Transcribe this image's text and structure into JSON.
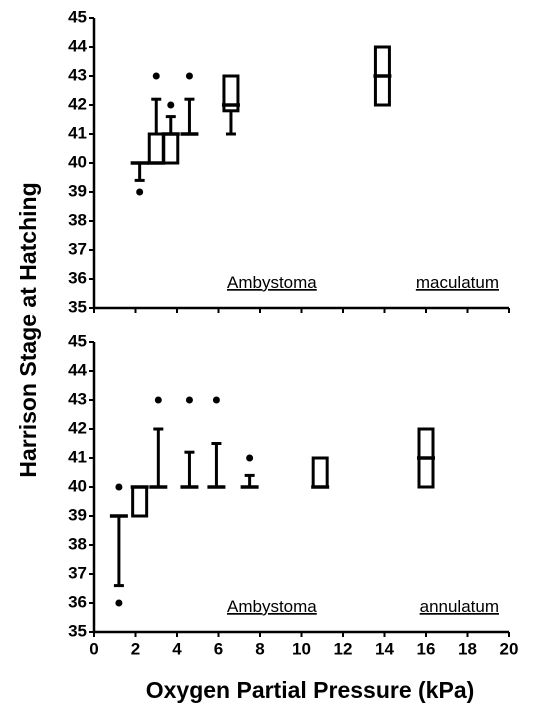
{
  "y_label": "Harrison Stage at Hatching",
  "x_label": "Oxygen Partial Pressure (kPa)",
  "chart_data": [
    {
      "type": "box",
      "annotation": [
        "Ambystoma",
        "maculatum"
      ],
      "xlim": [
        0,
        20
      ],
      "xticks": [
        0,
        2,
        4,
        6,
        8,
        10,
        12,
        14,
        16,
        18,
        20
      ],
      "show_xtick_labels": false,
      "ylim": [
        35,
        45
      ],
      "yticks": [
        35,
        36,
        37,
        38,
        39,
        40,
        41,
        42,
        43,
        44,
        45
      ],
      "boxes": [
        {
          "x": 2.2,
          "whislo": 39.4,
          "q1": 40,
          "med": 40,
          "q3": 40,
          "whishi": 40,
          "fliers": [
            39
          ]
        },
        {
          "x": 3.0,
          "whislo": 40,
          "q1": 40,
          "med": 40,
          "q3": 41,
          "whishi": 42.2,
          "fliers": [
            43
          ]
        },
        {
          "x": 3.7,
          "whislo": 40,
          "q1": 40,
          "med": 41,
          "q3": 41,
          "whishi": 41.6,
          "fliers": [
            42
          ]
        },
        {
          "x": 4.6,
          "whislo": 41,
          "q1": 41,
          "med": 41,
          "q3": 41,
          "whishi": 42.2,
          "fliers": [
            43
          ]
        },
        {
          "x": 6.6,
          "whislo": 41,
          "q1": 41.8,
          "med": 42,
          "q3": 43,
          "whishi": 43,
          "fliers": []
        },
        {
          "x": 13.9,
          "whislo": 42,
          "q1": 42,
          "med": 43,
          "q3": 44,
          "whishi": 44,
          "fliers": []
        }
      ]
    },
    {
      "type": "box",
      "annotation": [
        "Ambystoma",
        "annulatum"
      ],
      "xlim": [
        0,
        20
      ],
      "xticks": [
        0,
        2,
        4,
        6,
        8,
        10,
        12,
        14,
        16,
        18,
        20
      ],
      "show_xtick_labels": true,
      "ylim": [
        35,
        45
      ],
      "yticks": [
        35,
        36,
        37,
        38,
        39,
        40,
        41,
        42,
        43,
        44,
        45
      ],
      "boxes": [
        {
          "x": 1.2,
          "whislo": 36.6,
          "q1": 39,
          "med": 39,
          "q3": 39,
          "whishi": 39,
          "fliers": [
            36,
            40
          ]
        },
        {
          "x": 2.2,
          "whislo": 39,
          "q1": 39,
          "med": 40,
          "q3": 40,
          "whishi": 40,
          "fliers": []
        },
        {
          "x": 3.1,
          "whislo": 40,
          "q1": 40,
          "med": 40,
          "q3": 40,
          "whishi": 42,
          "fliers": [
            43
          ]
        },
        {
          "x": 4.6,
          "whislo": 40,
          "q1": 40,
          "med": 40,
          "q3": 40,
          "whishi": 41.2,
          "fliers": [
            43
          ]
        },
        {
          "x": 5.9,
          "whislo": 40,
          "q1": 40,
          "med": 40,
          "q3": 40,
          "whishi": 41.5,
          "fliers": [
            43
          ]
        },
        {
          "x": 7.5,
          "whislo": 40,
          "q1": 40,
          "med": 40,
          "q3": 40,
          "whishi": 40.4,
          "fliers": [
            41
          ]
        },
        {
          "x": 10.9,
          "whislo": 40,
          "q1": 40,
          "med": 40,
          "q3": 41,
          "whishi": 41,
          "fliers": []
        },
        {
          "x": 16.0,
          "whislo": 40,
          "q1": 40,
          "med": 41,
          "q3": 42,
          "whishi": 42,
          "fliers": []
        }
      ]
    }
  ]
}
